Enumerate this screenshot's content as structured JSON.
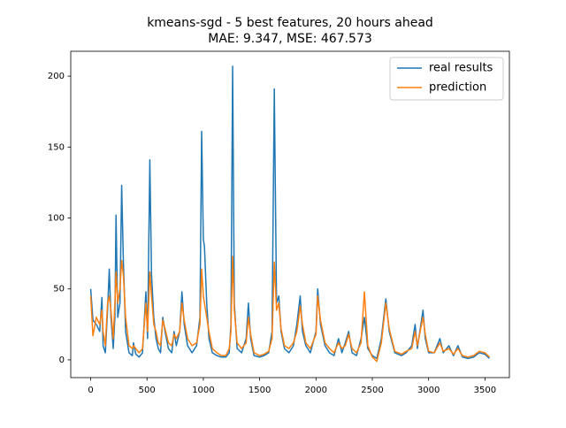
{
  "chart_data": {
    "type": "line",
    "title": "kmeans-sgd - 5 best features, 20 hours ahead",
    "subtitle": "MAE: 9.347, MSE: 467.573",
    "x": [
      0,
      20,
      50,
      80,
      100,
      110,
      130,
      150,
      165,
      180,
      200,
      215,
      225,
      240,
      260,
      275,
      290,
      310,
      340,
      370,
      380,
      400,
      430,
      460,
      490,
      505,
      525,
      540,
      560,
      580,
      600,
      620,
      640,
      660,
      690,
      720,
      740,
      760,
      790,
      810,
      830,
      860,
      900,
      940,
      970,
      985,
      1000,
      1010,
      1030,
      1050,
      1080,
      1120,
      1160,
      1200,
      1230,
      1245,
      1260,
      1275,
      1300,
      1340,
      1380,
      1400,
      1420,
      1450,
      1500,
      1540,
      1580,
      1610,
      1630,
      1650,
      1670,
      1690,
      1720,
      1760,
      1800,
      1830,
      1860,
      1880,
      1910,
      1950,
      2000,
      2015,
      2040,
      2080,
      2120,
      2160,
      2200,
      2230,
      2260,
      2290,
      2320,
      2360,
      2400,
      2430,
      2460,
      2500,
      2540,
      2580,
      2620,
      2650,
      2700,
      2760,
      2800,
      2850,
      2880,
      2900,
      2950,
      2970,
      3000,
      3050,
      3100,
      3130,
      3180,
      3220,
      3260,
      3300,
      3350,
      3400,
      3450,
      3500,
      3540
    ],
    "series": [
      {
        "name": "real results",
        "color": "#1f77b4",
        "values": [
          50,
          28,
          25,
          20,
          44,
          10,
          5,
          35,
          64,
          30,
          8,
          30,
          102,
          30,
          40,
          123,
          70,
          20,
          5,
          3,
          12,
          4,
          2,
          5,
          48,
          15,
          141,
          60,
          30,
          15,
          8,
          5,
          30,
          20,
          8,
          5,
          20,
          10,
          20,
          48,
          25,
          10,
          5,
          10,
          30,
          161,
          85,
          80,
          40,
          15,
          5,
          3,
          2,
          2,
          5,
          25,
          207,
          40,
          8,
          5,
          15,
          40,
          15,
          3,
          2,
          3,
          5,
          20,
          191,
          40,
          45,
          20,
          8,
          5,
          10,
          25,
          45,
          20,
          10,
          5,
          20,
          50,
          25,
          10,
          5,
          3,
          15,
          5,
          12,
          20,
          5,
          3,
          15,
          30,
          8,
          3,
          1,
          15,
          43,
          20,
          5,
          3,
          5,
          10,
          25,
          8,
          35,
          15,
          5,
          5,
          15,
          5,
          10,
          3,
          10,
          2,
          1,
          2,
          5,
          4,
          1
        ]
      },
      {
        "name": "prediction",
        "color": "#ff7f0e",
        "values": [
          45,
          17,
          30,
          25,
          35,
          20,
          10,
          40,
          45,
          35,
          15,
          40,
          62,
          40,
          50,
          70,
          60,
          30,
          10,
          8,
          10,
          8,
          5,
          8,
          40,
          20,
          62,
          45,
          25,
          20,
          12,
          10,
          28,
          22,
          12,
          10,
          18,
          15,
          20,
          40,
          28,
          15,
          10,
          12,
          25,
          64,
          45,
          40,
          30,
          20,
          8,
          5,
          3,
          3,
          8,
          20,
          73,
          35,
          12,
          8,
          12,
          30,
          18,
          5,
          3,
          4,
          6,
          15,
          69,
          35,
          40,
          22,
          10,
          8,
          12,
          20,
          38,
          25,
          12,
          8,
          18,
          45,
          28,
          12,
          8,
          5,
          12,
          8,
          10,
          18,
          8,
          5,
          12,
          48,
          10,
          2,
          -1,
          12,
          40,
          22,
          6,
          4,
          6,
          8,
          20,
          10,
          30,
          18,
          6,
          5,
          12,
          6,
          8,
          4,
          8,
          3,
          2,
          3,
          6,
          5,
          2
        ]
      }
    ],
    "xlim": [
      -177,
      3717
    ],
    "ylim": [
      -12.5,
      217.5
    ],
    "xticks": [
      0,
      500,
      1000,
      1500,
      2000,
      2500,
      3000,
      3500
    ],
    "yticks": [
      0,
      50,
      100,
      150,
      200
    ],
    "legend": "upper right"
  }
}
